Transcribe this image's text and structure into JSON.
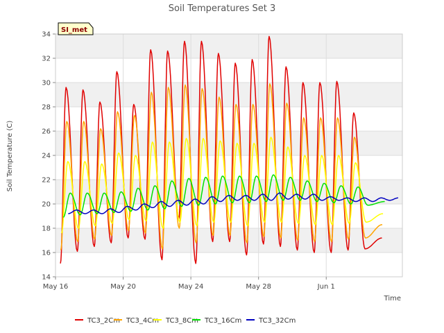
{
  "chart_data": {
    "type": "line",
    "title": "Soil Temperatures Set 3",
    "xlabel": "Time",
    "ylabel": "Soil Temperature (C)",
    "station_label": "SI_met",
    "ylim": [
      14,
      34
    ],
    "yticks": [
      14,
      16,
      18,
      20,
      22,
      24,
      26,
      28,
      30,
      32,
      34
    ],
    "xlim": [
      "2023-05-16",
      "2023-06-05T12:00"
    ],
    "xticks": [
      {
        "date": "2023-05-16",
        "label": "May 16"
      },
      {
        "date": "2023-05-20",
        "label": "May 20"
      },
      {
        "date": "2023-05-24",
        "label": "May 24"
      },
      {
        "date": "2023-05-28",
        "label": "May 28"
      },
      {
        "date": "2023-06-01",
        "label": "Jun 1"
      }
    ],
    "grid": true,
    "legend_position": "bottom",
    "background_bands": "#f0f0f0",
    "series": [
      {
        "name": "TC3_2Cm",
        "color": "#e00000",
        "min_time": "2023-05-16T07:00",
        "daily_min": [
          15.1,
          16.1,
          16.5,
          16.8,
          17.2,
          17.1,
          15.4,
          18.8,
          15.1,
          16.9,
          16.9,
          15.8,
          16.7,
          16.5,
          16.2,
          16.0,
          16.0,
          16.2,
          16.3,
          17.2
        ],
        "max_time": "2023-05-16T15:00",
        "daily_max": [
          29.6,
          29.4,
          28.4,
          30.9,
          28.2,
          32.7,
          32.6,
          33.4,
          33.4,
          32.4,
          31.6,
          31.9,
          33.8,
          31.3,
          30.0,
          30.0,
          30.1,
          27.5
        ]
      },
      {
        "name": "TC3_4Cm",
        "color": "#ffa500",
        "min_time": "2023-05-16T07:30",
        "daily_min": [
          16.2,
          16.9,
          17.1,
          17.4,
          17.8,
          17.6,
          16.3,
          18.0,
          16.8,
          17.4,
          17.4,
          16.8,
          17.3,
          17.2,
          17.0,
          16.9,
          16.9,
          17.1,
          17.2,
          18.3
        ],
        "max_time": "2023-05-16T16:00",
        "daily_max": [
          26.8,
          26.8,
          26.2,
          27.6,
          27.3,
          29.2,
          29.6,
          29.8,
          29.5,
          28.8,
          28.2,
          28.2,
          29.9,
          28.3,
          27.1,
          27.1,
          27.1,
          25.5
        ]
      },
      {
        "name": "TC3_8Cm",
        "color": "#ffff00",
        "min_time": "2023-05-16T08:30",
        "daily_min": [
          17.6,
          18.0,
          18.2,
          18.4,
          18.7,
          18.6,
          18.0,
          18.5,
          18.2,
          18.5,
          18.5,
          18.2,
          18.5,
          18.5,
          18.4,
          18.3,
          18.3,
          18.4,
          18.5,
          19.2
        ],
        "max_time": "2023-05-16T17:30",
        "daily_max": [
          23.5,
          23.5,
          23.3,
          24.2,
          24.0,
          25.1,
          25.1,
          25.4,
          25.4,
          25.2,
          25.0,
          25.0,
          25.5,
          24.7,
          24.0,
          24.0,
          24.0,
          23.4
        ]
      },
      {
        "name": "TC3_16Cm",
        "color": "#00e000",
        "min_time": "2023-05-16T11:00",
        "daily_min": [
          18.9,
          19.1,
          19.2,
          19.3,
          19.4,
          19.5,
          19.6,
          19.8,
          19.9,
          20.0,
          20.1,
          20.1,
          20.2,
          20.3,
          20.3,
          20.2,
          20.1,
          20.0,
          19.9,
          20.2
        ],
        "max_time": "2023-05-16T21:00",
        "daily_max": [
          20.9,
          20.9,
          20.9,
          21.0,
          21.3,
          21.5,
          21.9,
          22.1,
          22.2,
          22.3,
          22.3,
          22.3,
          22.4,
          22.2,
          21.9,
          21.7,
          21.5,
          21.4
        ]
      },
      {
        "name": "TC3_32Cm",
        "color": "#0000c0",
        "min_time": "2023-05-16T18:00",
        "daily_min": [
          19.2,
          19.2,
          19.2,
          19.3,
          19.5,
          19.7,
          19.8,
          19.9,
          20.0,
          20.2,
          20.3,
          20.3,
          20.3,
          20.4,
          20.4,
          20.3,
          20.3,
          20.2,
          20.2,
          20.3
        ],
        "max_time": "2023-05-17T06:00",
        "daily_max": [
          19.5,
          19.5,
          19.6,
          19.8,
          20.0,
          20.2,
          20.3,
          20.4,
          20.6,
          20.7,
          20.7,
          20.8,
          20.9,
          20.8,
          20.8,
          20.6,
          20.5,
          20.5,
          20.5,
          20.5
        ]
      }
    ]
  }
}
